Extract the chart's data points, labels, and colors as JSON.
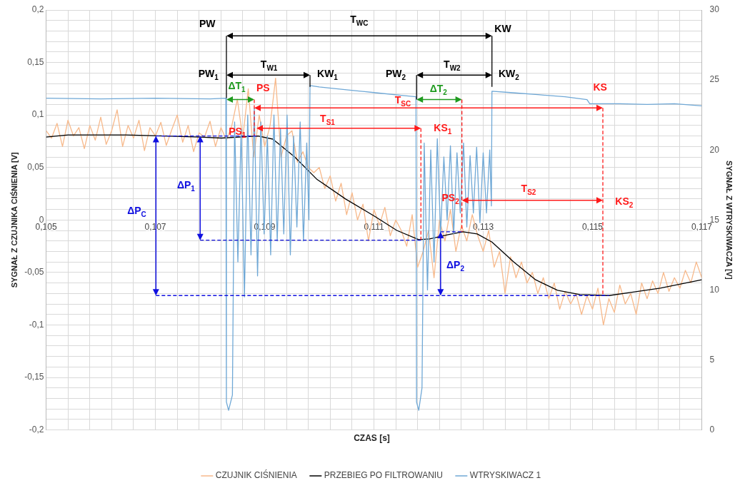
{
  "chart_data": {
    "type": "line",
    "xlabel": "CZAS [s]",
    "ylabel": "SYGNAŁ Z CZUJNIKA CIŚNIENIA [V]",
    "y2label": "SYGNAŁ Z WTRYSKIWACZA [V]",
    "xlim": [
      0.105,
      0.117
    ],
    "ylim": [
      -0.2,
      0.2
    ],
    "y2lim": [
      0,
      30
    ],
    "xticks": [
      {
        "value": 0.105,
        "label": "0,105"
      },
      {
        "value": 0.1054,
        "label": null
      },
      {
        "value": 0.1058,
        "label": null
      },
      {
        "value": 0.1062,
        "label": null
      },
      {
        "value": 0.1066,
        "label": null
      },
      {
        "value": 0.107,
        "label": "0,107"
      },
      {
        "value": 0.1074,
        "label": null
      },
      {
        "value": 0.1078,
        "label": null
      },
      {
        "value": 0.1082,
        "label": null
      },
      {
        "value": 0.1086,
        "label": null
      },
      {
        "value": 0.109,
        "label": "0,109"
      },
      {
        "value": 0.1094,
        "label": null
      },
      {
        "value": 0.1098,
        "label": null
      },
      {
        "value": 0.1102,
        "label": null
      },
      {
        "value": 0.1106,
        "label": null
      },
      {
        "value": 0.111,
        "label": "0,111"
      },
      {
        "value": 0.1114,
        "label": null
      },
      {
        "value": 0.1118,
        "label": null
      },
      {
        "value": 0.1122,
        "label": null
      },
      {
        "value": 0.1126,
        "label": null
      },
      {
        "value": 0.113,
        "label": "0,113"
      },
      {
        "value": 0.1134,
        "label": null
      },
      {
        "value": 0.1138,
        "label": null
      },
      {
        "value": 0.1142,
        "label": null
      },
      {
        "value": 0.1146,
        "label": null
      },
      {
        "value": 0.115,
        "label": "0,115"
      },
      {
        "value": 0.1154,
        "label": null
      },
      {
        "value": 0.1158,
        "label": null
      },
      {
        "value": 0.1162,
        "label": null
      },
      {
        "value": 0.1166,
        "label": null
      },
      {
        "value": 0.117,
        "label": "0,117"
      }
    ],
    "yticks": [
      {
        "value": -0.2,
        "label": "-0,2"
      },
      {
        "value": -0.19,
        "label": null
      },
      {
        "value": -0.18,
        "label": null
      },
      {
        "value": -0.17,
        "label": null
      },
      {
        "value": -0.16,
        "label": null
      },
      {
        "value": -0.15,
        "label": "-0,15"
      },
      {
        "value": -0.14,
        "label": null
      },
      {
        "value": -0.13,
        "label": null
      },
      {
        "value": -0.12,
        "label": null
      },
      {
        "value": -0.11,
        "label": null
      },
      {
        "value": -0.1,
        "label": "-0,1"
      },
      {
        "value": -0.09,
        "label": null
      },
      {
        "value": -0.08,
        "label": null
      },
      {
        "value": -0.07,
        "label": null
      },
      {
        "value": -0.06,
        "label": null
      },
      {
        "value": -0.05,
        "label": "-0,05"
      },
      {
        "value": -0.04,
        "label": null
      },
      {
        "value": -0.03,
        "label": null
      },
      {
        "value": -0.02,
        "label": null
      },
      {
        "value": -0.01,
        "label": null
      },
      0,
      {
        "value": 0.01,
        "label": null
      },
      {
        "value": 0.02,
        "label": null
      },
      {
        "value": 0.03,
        "label": null
      },
      {
        "value": 0.04,
        "label": null
      },
      {
        "value": 0.05,
        "label": "0,05"
      },
      {
        "value": 0.06,
        "label": null
      },
      {
        "value": 0.07,
        "label": null
      },
      {
        "value": 0.08,
        "label": null
      },
      {
        "value": 0.09,
        "label": null
      },
      {
        "value": 0.1,
        "label": "0,1"
      },
      {
        "value": 0.11,
        "label": null
      },
      {
        "value": 0.12,
        "label": null
      },
      {
        "value": 0.13,
        "label": null
      },
      {
        "value": 0.14,
        "label": null
      },
      {
        "value": 0.15,
        "label": "0,15"
      },
      {
        "value": 0.16,
        "label": null
      },
      {
        "value": 0.17,
        "label": null
      },
      {
        "value": 0.18,
        "label": null
      },
      {
        "value": 0.19,
        "label": null
      },
      {
        "value": 0.2,
        "label": "0,2"
      }
    ],
    "y2ticks": [
      0,
      5,
      10,
      15,
      20,
      25,
      30
    ],
    "grid": true,
    "legend": "bottom",
    "marker": "none",
    "series": [
      {
        "name": "CZUJNIK CIŚNIENIA",
        "color": "#f7b98b",
        "x": [
          0.105,
          0.1051,
          0.1052,
          0.1053,
          0.1054,
          0.1055,
          0.1056,
          0.1057,
          0.1058,
          0.1059,
          0.106,
          0.1061,
          0.1062,
          0.1063,
          0.1064,
          0.1065,
          0.1066,
          0.1067,
          0.1068,
          0.1069,
          0.107,
          0.1071,
          0.1072,
          0.1073,
          0.1074,
          0.1075,
          0.1076,
          0.1077,
          0.1078,
          0.1079,
          0.108,
          0.1081,
          0.1082,
          0.1083,
          0.1084,
          0.1085,
          0.1086,
          0.1087,
          0.1088,
          0.1089,
          0.109,
          0.1091,
          0.1092,
          0.1093,
          0.1094,
          0.1095,
          0.1096,
          0.1097,
          0.1098,
          0.1099,
          0.11,
          0.1101,
          0.1102,
          0.1103,
          0.1104,
          0.1105,
          0.1106,
          0.1107,
          0.1108,
          0.1109,
          0.111,
          0.1111,
          0.1112,
          0.1113,
          0.1114,
          0.1115,
          0.1116,
          0.1117,
          0.1118,
          0.1119,
          0.112,
          0.1121,
          0.1122,
          0.1123,
          0.1124,
          0.1125,
          0.1126,
          0.1127,
          0.1128,
          0.1129,
          0.113,
          0.1131,
          0.1132,
          0.1133,
          0.1134,
          0.1135,
          0.1136,
          0.1137,
          0.1138,
          0.1139,
          0.114,
          0.1141,
          0.1142,
          0.1143,
          0.1144,
          0.1145,
          0.1146,
          0.1147,
          0.1148,
          0.1149,
          0.115,
          0.1151,
          0.1152,
          0.1153,
          0.1154,
          0.1155,
          0.1156,
          0.1157,
          0.1158,
          0.1159,
          0.116,
          0.1161,
          0.1162,
          0.1163,
          0.1164,
          0.1165,
          0.1166,
          0.1167,
          0.1168,
          0.1169,
          0.117
        ],
        "values": [
          0.085,
          0.078,
          0.092,
          0.07,
          0.095,
          0.08,
          0.088,
          0.068,
          0.09,
          0.076,
          0.098,
          0.072,
          0.085,
          0.105,
          0.07,
          0.09,
          0.078,
          0.095,
          0.066,
          0.088,
          0.08,
          0.093,
          0.071,
          0.086,
          0.1,
          0.074,
          0.09,
          0.065,
          0.083,
          0.079,
          0.094,
          0.07,
          0.088,
          0.076,
          0.09,
          0.115,
          0.078,
          0.125,
          0.06,
          0.1,
          0.07,
          0.09,
          0.135,
          0.06,
          0.08,
          0.085,
          0.055,
          0.065,
          0.05,
          0.045,
          0.05,
          0.03,
          0.042,
          0.018,
          0.035,
          0.005,
          0.026,
          0,
          0.015,
          -0.02,
          0.01,
          -0.005,
          0.012,
          -0.015,
          0,
          -0.01,
          -0.025,
          0.005,
          -0.045,
          -0.03,
          -0.01,
          -0.055,
          0,
          -0.02,
          0.01,
          -0.03,
          -0.005,
          -0.02,
          0.005,
          -0.015,
          -0.03,
          -0.01,
          -0.045,
          -0.03,
          -0.07,
          -0.035,
          -0.055,
          -0.04,
          -0.06,
          -0.05,
          -0.07,
          -0.055,
          -0.075,
          -0.06,
          -0.085,
          -0.068,
          -0.08,
          -0.07,
          -0.09,
          -0.072,
          -0.085,
          -0.065,
          -0.1,
          -0.075,
          -0.088,
          -0.062,
          -0.08,
          -0.07,
          -0.09,
          -0.06,
          -0.075,
          -0.058,
          -0.07,
          -0.05,
          -0.068,
          -0.055,
          -0.065,
          -0.048,
          -0.06,
          -0.04,
          -0.055
        ]
      },
      {
        "name": "PRZEBIEG PO FILTROWANIU",
        "color": "#000000",
        "x": [
          0.105,
          0.1054,
          0.10647,
          0.10781,
          0.10821,
          0.10888,
          0.10915,
          0.10955,
          0.10995,
          0.11048,
          0.11102,
          0.11142,
          0.11182,
          0.11202,
          0.11236,
          0.11263,
          0.11289,
          0.11316,
          0.11356,
          0.11396,
          0.11436,
          0.11477,
          0.1153,
          0.1157,
          0.11624,
          0.117
        ],
        "values": [
          0.079,
          0.081,
          0.081,
          0.079,
          0.078,
          0.08,
          0.077,
          0.06,
          0.039,
          0.02,
          0.0033,
          -0.01,
          -0.0187,
          -0.018,
          -0.014,
          -0.0113,
          -0.0133,
          -0.021,
          -0.04,
          -0.057,
          -0.067,
          -0.071,
          -0.072,
          -0.069,
          -0.065,
          -0.057
        ]
      },
      {
        "name": "WTRYSKIWACZ 1",
        "axis": "y2",
        "color": "#6fa8d6",
        "x": [
          0.105,
          0.106,
          0.107,
          0.108,
          0.10829,
          0.1083,
          0.10834,
          0.10841,
          0.10845,
          0.10851,
          0.10857,
          0.10863,
          0.10869,
          0.10875,
          0.10881,
          0.10887,
          0.10893,
          0.10899,
          0.10905,
          0.10911,
          0.10917,
          0.10923,
          0.10929,
          0.10935,
          0.10941,
          0.10947,
          0.10953,
          0.10959,
          0.10965,
          0.10971,
          0.10977,
          0.10981,
          0.10983,
          0.11,
          0.1105,
          0.111,
          0.1115,
          0.11177,
          0.11178,
          0.11182,
          0.11188,
          0.11192,
          0.11198,
          0.11204,
          0.1121,
          0.11216,
          0.11222,
          0.11228,
          0.11234,
          0.1124,
          0.11246,
          0.11252,
          0.11258,
          0.11264,
          0.1127,
          0.11276,
          0.11282,
          0.11288,
          0.11294,
          0.113,
          0.11306,
          0.11312,
          0.11315,
          0.11316,
          0.1135,
          0.114,
          0.1145,
          0.1149,
          0.11495,
          0.115,
          0.1155,
          0.116,
          0.1165,
          0.117
        ],
        "values": [
          23.7,
          23.65,
          23.7,
          23.65,
          23.7,
          2,
          1.4,
          2.5,
          22,
          12,
          21.5,
          9.5,
          22.5,
          12.5,
          23,
          11,
          22,
          14,
          21,
          12.5,
          22.5,
          13.5,
          21.5,
          14,
          22.5,
          12.5,
          21,
          14.5,
          22,
          13.5,
          20.5,
          15,
          24.6,
          24.5,
          24.3,
          24.1,
          23.9,
          23.8,
          2,
          1.4,
          3,
          20.5,
          10,
          20,
          12,
          20.8,
          14,
          19.5,
          15,
          20.3,
          14,
          19.8,
          15.5,
          20.5,
          14.5,
          19.6,
          15.5,
          20.2,
          14.8,
          19.8,
          15.5,
          20,
          16,
          24.2,
          24.1,
          23.95,
          23.8,
          23.6,
          23.3,
          23.3,
          23.3,
          23.25,
          23.3,
          23.15
        ]
      }
    ],
    "annotations": [
      {
        "text": "PW",
        "x": 0.1083,
        "y": 0.116
      },
      "T$_{WC}$",
      "KW",
      "PW$_{1}$",
      "T$_{W1}$",
      "KW$_{1}$",
      "PW$_{2}$",
      "T$_{W2}$",
      "KW$_{2}$",
      "ΔT$_{1}$",
      {
        "text": "PS",
        "x": 0.10881,
        "y": 0.08
      },
      "T$_{SC}$",
      "KS",
      "ΔT$_{2}$",
      "PS$_{1}$",
      "T$_{S1}$",
      {
        "text": "KS$_{1}$",
        "x": 0.11186,
        "y": -0.0187
      },
      "PS$_{2}$",
      "T$_{S2}$",
      "KS$_{2}$",
      "ΔP$_{C}$",
      "ΔP$_{1}$",
      "ΔP$_{2}$"
    ]
  }
}
